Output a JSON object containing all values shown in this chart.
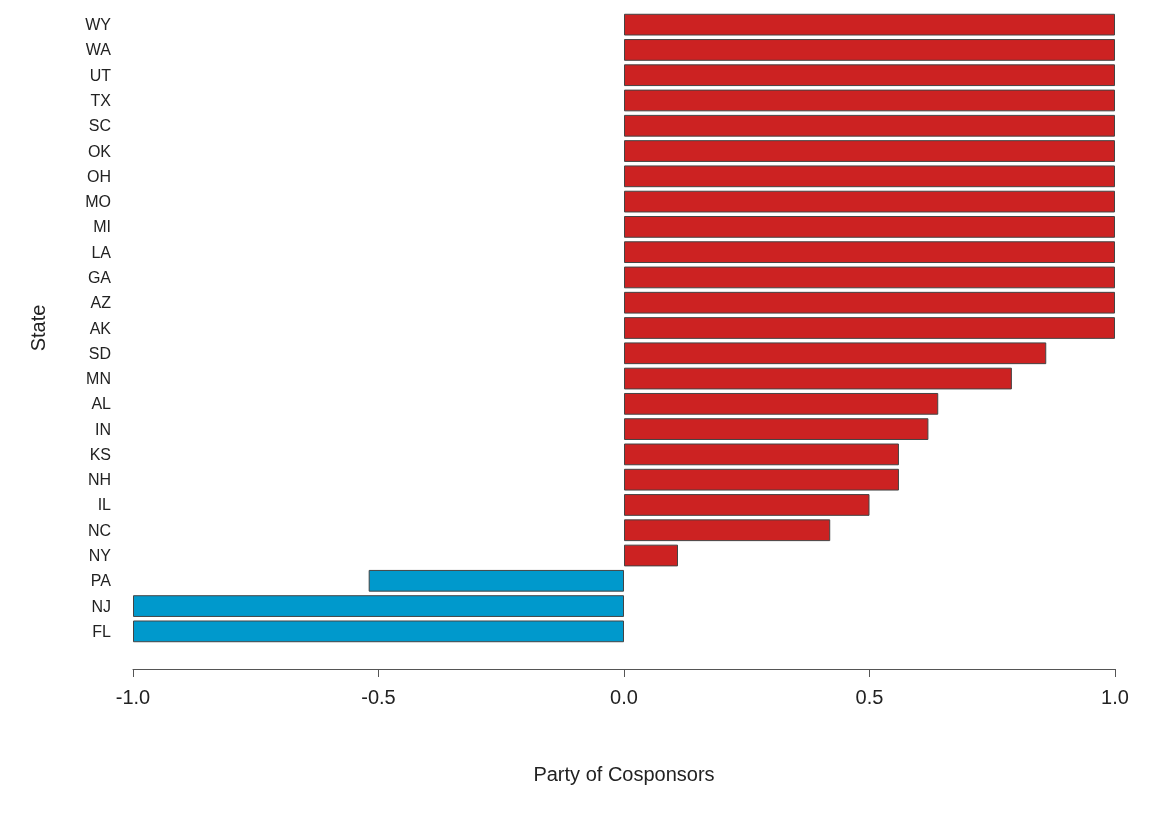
{
  "chart_data": {
    "type": "bar",
    "orientation": "horizontal",
    "xlabel": "Party of Cosponsors",
    "ylabel": "State",
    "categories": [
      "WY",
      "WA",
      "UT",
      "TX",
      "SC",
      "OK",
      "OH",
      "MO",
      "MI",
      "LA",
      "GA",
      "AZ",
      "AK",
      "SD",
      "MN",
      "AL",
      "IN",
      "KS",
      "NH",
      "IL",
      "NC",
      "NY",
      "PA",
      "NJ",
      "FL"
    ],
    "values": [
      1,
      1,
      1,
      1,
      1,
      1,
      1,
      1,
      1,
      1,
      1,
      1,
      1,
      0.86,
      0.79,
      0.64,
      0.62,
      0.56,
      0.56,
      0.5,
      0.42,
      0.11,
      -0.52,
      -1,
      -1
    ],
    "colors": [
      "#cc2222",
      "#cc2222",
      "#cc2222",
      "#cc2222",
      "#cc2222",
      "#cc2222",
      "#cc2222",
      "#cc2222",
      "#cc2222",
      "#cc2222",
      "#cc2222",
      "#cc2222",
      "#cc2222",
      "#cc2222",
      "#cc2222",
      "#cc2222",
      "#cc2222",
      "#cc2222",
      "#cc2222",
      "#cc2222",
      "#cc2222",
      "#cc2222",
      "#0099cc",
      "#0099cc",
      "#0099cc"
    ],
    "xlim": [
      -1,
      1
    ],
    "xticks": [
      {
        "value": -1,
        "label": "-1.0"
      },
      {
        "value": -0.5,
        "label": "-0.5"
      },
      {
        "value": 0,
        "label": "0.0"
      },
      {
        "value": 0.5,
        "label": "0.5"
      },
      {
        "value": 1,
        "label": "1.0"
      }
    ],
    "grid": false
  }
}
